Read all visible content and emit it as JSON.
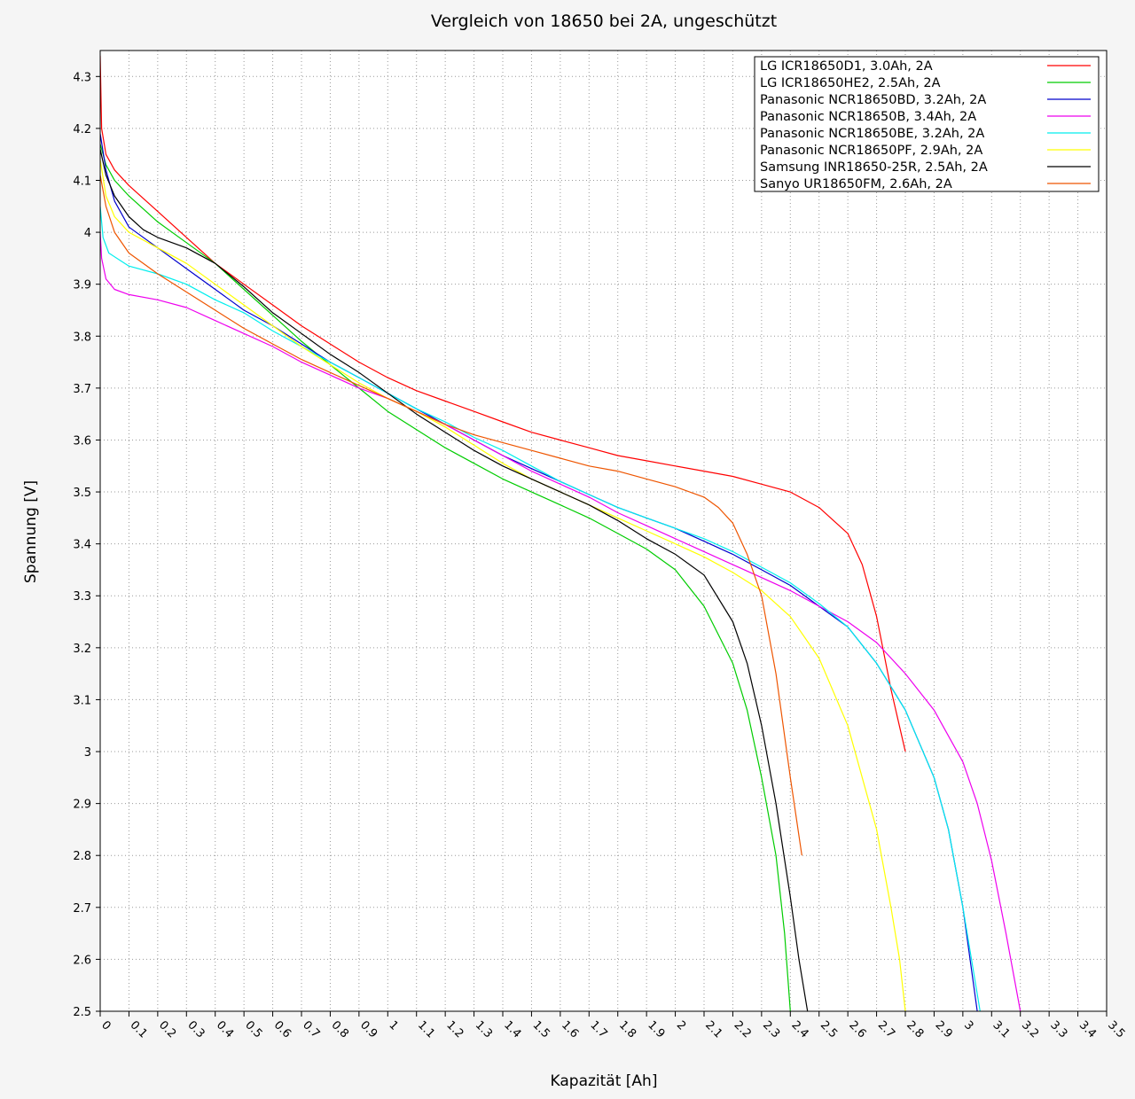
{
  "chart_data": {
    "type": "line",
    "title": "Vergleich von 18650 bei 2A, ungeschützt",
    "xlabel": "Kapazität [Ah]",
    "ylabel": "Spannung [V]",
    "xlim": [
      0,
      3.5
    ],
    "ylim": [
      2.5,
      4.35
    ],
    "x_ticks": [
      "0",
      "0.1",
      "0.2",
      "0.3",
      "0.4",
      "0.5",
      "0.6",
      "0.7",
      "0.8",
      "0.9",
      "1",
      "1.1",
      "1.2",
      "1.3",
      "1.4",
      "1.5",
      "1.6",
      "1.7",
      "1.8",
      "1.9",
      "2",
      "2.1",
      "2.2",
      "2.3",
      "2.4",
      "2.5",
      "2.6",
      "2.7",
      "2.8",
      "2.9",
      "3",
      "3.1",
      "3.2",
      "3.3",
      "3.4",
      "3.5"
    ],
    "y_ticks": [
      "2.5",
      "2.6",
      "2.7",
      "2.8",
      "2.9",
      "3",
      "3.1",
      "3.2",
      "3.3",
      "3.4",
      "3.5",
      "3.6",
      "3.7",
      "3.8",
      "3.9",
      "4",
      "4.1",
      "4.2",
      "4.3"
    ],
    "grid": true,
    "legend_position": "top-right",
    "series": [
      {
        "name": "LG ICR18650D1, 3.0Ah, 2A",
        "color": "#ff0000",
        "points": [
          [
            0,
            4.34
          ],
          [
            0.005,
            4.2
          ],
          [
            0.02,
            4.15
          ],
          [
            0.05,
            4.12
          ],
          [
            0.1,
            4.09
          ],
          [
            0.2,
            4.04
          ],
          [
            0.3,
            3.99
          ],
          [
            0.4,
            3.94
          ],
          [
            0.5,
            3.9
          ],
          [
            0.6,
            3.86
          ],
          [
            0.7,
            3.82
          ],
          [
            0.8,
            3.785
          ],
          [
            0.9,
            3.75
          ],
          [
            1.0,
            3.72
          ],
          [
            1.1,
            3.695
          ],
          [
            1.2,
            3.675
          ],
          [
            1.3,
            3.655
          ],
          [
            1.4,
            3.635
          ],
          [
            1.5,
            3.615
          ],
          [
            1.6,
            3.6
          ],
          [
            1.7,
            3.585
          ],
          [
            1.8,
            3.57
          ],
          [
            1.9,
            3.56
          ],
          [
            2.0,
            3.55
          ],
          [
            2.1,
            3.54
          ],
          [
            2.2,
            3.53
          ],
          [
            2.3,
            3.515
          ],
          [
            2.4,
            3.5
          ],
          [
            2.5,
            3.47
          ],
          [
            2.6,
            3.42
          ],
          [
            2.65,
            3.36
          ],
          [
            2.7,
            3.26
          ],
          [
            2.75,
            3.12
          ],
          [
            2.8,
            3.0
          ]
        ]
      },
      {
        "name": "LG ICR18650HE2, 2.5Ah, 2A",
        "color": "#00cc00",
        "points": [
          [
            0,
            4.17
          ],
          [
            0.02,
            4.13
          ],
          [
            0.05,
            4.1
          ],
          [
            0.1,
            4.07
          ],
          [
            0.2,
            4.02
          ],
          [
            0.3,
            3.98
          ],
          [
            0.4,
            3.94
          ],
          [
            0.5,
            3.89
          ],
          [
            0.6,
            3.84
          ],
          [
            0.7,
            3.79
          ],
          [
            0.8,
            3.745
          ],
          [
            0.9,
            3.7
          ],
          [
            1.0,
            3.655
          ],
          [
            1.1,
            3.62
          ],
          [
            1.2,
            3.585
          ],
          [
            1.3,
            3.555
          ],
          [
            1.4,
            3.525
          ],
          [
            1.5,
            3.5
          ],
          [
            1.6,
            3.475
          ],
          [
            1.7,
            3.45
          ],
          [
            1.8,
            3.42
          ],
          [
            1.9,
            3.39
          ],
          [
            2.0,
            3.35
          ],
          [
            2.1,
            3.28
          ],
          [
            2.2,
            3.17
          ],
          [
            2.25,
            3.08
          ],
          [
            2.3,
            2.95
          ],
          [
            2.35,
            2.8
          ],
          [
            2.38,
            2.65
          ],
          [
            2.4,
            2.5
          ]
        ]
      },
      {
        "name": "Panasonic NCR18650BD, 3.2Ah, 2A",
        "color": "#0000cc",
        "points": [
          [
            0,
            4.19
          ],
          [
            0.02,
            4.12
          ],
          [
            0.05,
            4.06
          ],
          [
            0.1,
            4.01
          ],
          [
            0.2,
            3.97
          ],
          [
            0.3,
            3.93
          ],
          [
            0.4,
            3.89
          ],
          [
            0.5,
            3.85
          ],
          [
            0.6,
            3.82
          ],
          [
            0.7,
            3.785
          ],
          [
            0.8,
            3.75
          ],
          [
            0.9,
            3.72
          ],
          [
            1.0,
            3.69
          ],
          [
            1.1,
            3.66
          ],
          [
            1.2,
            3.63
          ],
          [
            1.3,
            3.6
          ],
          [
            1.4,
            3.57
          ],
          [
            1.5,
            3.545
          ],
          [
            1.6,
            3.52
          ],
          [
            1.7,
            3.495
          ],
          [
            1.8,
            3.47
          ],
          [
            1.9,
            3.45
          ],
          [
            2.0,
            3.43
          ],
          [
            2.1,
            3.405
          ],
          [
            2.2,
            3.38
          ],
          [
            2.3,
            3.35
          ],
          [
            2.4,
            3.32
          ],
          [
            2.5,
            3.28
          ],
          [
            2.6,
            3.24
          ],
          [
            2.7,
            3.17
          ],
          [
            2.8,
            3.08
          ],
          [
            2.9,
            2.95
          ],
          [
            2.95,
            2.85
          ],
          [
            3.0,
            2.7
          ],
          [
            3.05,
            2.5
          ]
        ]
      },
      {
        "name": "Panasonic NCR18650B, 3.4Ah, 2A",
        "color": "#ee00ee",
        "points": [
          [
            0,
            4.0
          ],
          [
            0.005,
            3.95
          ],
          [
            0.02,
            3.91
          ],
          [
            0.05,
            3.89
          ],
          [
            0.1,
            3.88
          ],
          [
            0.2,
            3.87
          ],
          [
            0.3,
            3.855
          ],
          [
            0.4,
            3.83
          ],
          [
            0.5,
            3.805
          ],
          [
            0.6,
            3.78
          ],
          [
            0.7,
            3.75
          ],
          [
            0.8,
            3.725
          ],
          [
            0.9,
            3.7
          ],
          [
            1.0,
            3.68
          ],
          [
            1.1,
            3.655
          ],
          [
            1.2,
            3.63
          ],
          [
            1.3,
            3.6
          ],
          [
            1.4,
            3.57
          ],
          [
            1.5,
            3.54
          ],
          [
            1.6,
            3.515
          ],
          [
            1.7,
            3.49
          ],
          [
            1.8,
            3.46
          ],
          [
            1.9,
            3.435
          ],
          [
            2.0,
            3.41
          ],
          [
            2.1,
            3.385
          ],
          [
            2.2,
            3.36
          ],
          [
            2.3,
            3.335
          ],
          [
            2.4,
            3.31
          ],
          [
            2.5,
            3.28
          ],
          [
            2.6,
            3.25
          ],
          [
            2.7,
            3.21
          ],
          [
            2.8,
            3.15
          ],
          [
            2.9,
            3.08
          ],
          [
            3.0,
            2.98
          ],
          [
            3.05,
            2.9
          ],
          [
            3.1,
            2.79
          ],
          [
            3.15,
            2.65
          ],
          [
            3.2,
            2.5
          ]
        ]
      },
      {
        "name": "Panasonic NCR18650BE, 3.2Ah, 2A",
        "color": "#00eeee",
        "points": [
          [
            0,
            4.05
          ],
          [
            0.01,
            3.99
          ],
          [
            0.03,
            3.96
          ],
          [
            0.1,
            3.935
          ],
          [
            0.2,
            3.92
          ],
          [
            0.3,
            3.9
          ],
          [
            0.4,
            3.87
          ],
          [
            0.5,
            3.845
          ],
          [
            0.6,
            3.81
          ],
          [
            0.7,
            3.78
          ],
          [
            0.8,
            3.75
          ],
          [
            0.9,
            3.72
          ],
          [
            1.0,
            3.69
          ],
          [
            1.1,
            3.66
          ],
          [
            1.2,
            3.635
          ],
          [
            1.3,
            3.605
          ],
          [
            1.4,
            3.58
          ],
          [
            1.5,
            3.55
          ],
          [
            1.6,
            3.52
          ],
          [
            1.7,
            3.495
          ],
          [
            1.8,
            3.47
          ],
          [
            1.9,
            3.45
          ],
          [
            2.0,
            3.43
          ],
          [
            2.1,
            3.41
          ],
          [
            2.2,
            3.385
          ],
          [
            2.3,
            3.355
          ],
          [
            2.4,
            3.325
          ],
          [
            2.5,
            3.285
          ],
          [
            2.6,
            3.24
          ],
          [
            2.7,
            3.17
          ],
          [
            2.8,
            3.08
          ],
          [
            2.9,
            2.95
          ],
          [
            2.95,
            2.85
          ],
          [
            3.0,
            2.7
          ],
          [
            3.06,
            2.5
          ]
        ]
      },
      {
        "name": "Panasonic NCR18650PF, 2.9Ah, 2A",
        "color": "#ffff00",
        "points": [
          [
            0,
            4.14
          ],
          [
            0.02,
            4.07
          ],
          [
            0.05,
            4.03
          ],
          [
            0.1,
            4.0
          ],
          [
            0.2,
            3.97
          ],
          [
            0.3,
            3.94
          ],
          [
            0.4,
            3.9
          ],
          [
            0.5,
            3.86
          ],
          [
            0.6,
            3.82
          ],
          [
            0.7,
            3.78
          ],
          [
            0.8,
            3.745
          ],
          [
            0.9,
            3.71
          ],
          [
            1.0,
            3.68
          ],
          [
            1.1,
            3.655
          ],
          [
            1.2,
            3.625
          ],
          [
            1.3,
            3.59
          ],
          [
            1.4,
            3.555
          ],
          [
            1.5,
            3.525
          ],
          [
            1.6,
            3.5
          ],
          [
            1.7,
            3.475
          ],
          [
            1.8,
            3.45
          ],
          [
            1.9,
            3.425
          ],
          [
            2.0,
            3.4
          ],
          [
            2.1,
            3.375
          ],
          [
            2.2,
            3.345
          ],
          [
            2.3,
            3.31
          ],
          [
            2.4,
            3.26
          ],
          [
            2.5,
            3.18
          ],
          [
            2.6,
            3.05
          ],
          [
            2.7,
            2.85
          ],
          [
            2.75,
            2.7
          ],
          [
            2.78,
            2.6
          ],
          [
            2.8,
            2.5
          ]
        ]
      },
      {
        "name": "Samsung INR18650-25R, 2.5Ah, 2A",
        "color": "#000000",
        "points": [
          [
            0,
            4.16
          ],
          [
            0.02,
            4.11
          ],
          [
            0.05,
            4.07
          ],
          [
            0.1,
            4.03
          ],
          [
            0.15,
            4.005
          ],
          [
            0.2,
            3.99
          ],
          [
            0.3,
            3.97
          ],
          [
            0.4,
            3.94
          ],
          [
            0.5,
            3.895
          ],
          [
            0.6,
            3.845
          ],
          [
            0.7,
            3.805
          ],
          [
            0.8,
            3.765
          ],
          [
            0.9,
            3.73
          ],
          [
            1.0,
            3.69
          ],
          [
            1.1,
            3.65
          ],
          [
            1.2,
            3.615
          ],
          [
            1.3,
            3.58
          ],
          [
            1.4,
            3.55
          ],
          [
            1.5,
            3.525
          ],
          [
            1.6,
            3.5
          ],
          [
            1.7,
            3.475
          ],
          [
            1.8,
            3.445
          ],
          [
            1.9,
            3.41
          ],
          [
            2.0,
            3.38
          ],
          [
            2.1,
            3.34
          ],
          [
            2.2,
            3.25
          ],
          [
            2.25,
            3.17
          ],
          [
            2.3,
            3.05
          ],
          [
            2.35,
            2.9
          ],
          [
            2.4,
            2.72
          ],
          [
            2.43,
            2.6
          ],
          [
            2.46,
            2.5
          ]
        ]
      },
      {
        "name": "Sanyo UR18650FM, 2.6Ah, 2A",
        "color": "#ee5500",
        "points": [
          [
            0,
            4.11
          ],
          [
            0.02,
            4.05
          ],
          [
            0.05,
            4.0
          ],
          [
            0.1,
            3.96
          ],
          [
            0.2,
            3.92
          ],
          [
            0.3,
            3.885
          ],
          [
            0.4,
            3.85
          ],
          [
            0.5,
            3.815
          ],
          [
            0.6,
            3.785
          ],
          [
            0.7,
            3.755
          ],
          [
            0.8,
            3.73
          ],
          [
            0.9,
            3.705
          ],
          [
            1.0,
            3.68
          ],
          [
            1.1,
            3.655
          ],
          [
            1.2,
            3.63
          ],
          [
            1.3,
            3.61
          ],
          [
            1.4,
            3.595
          ],
          [
            1.5,
            3.58
          ],
          [
            1.6,
            3.565
          ],
          [
            1.7,
            3.55
          ],
          [
            1.8,
            3.54
          ],
          [
            1.9,
            3.525
          ],
          [
            2.0,
            3.51
          ],
          [
            2.1,
            3.49
          ],
          [
            2.15,
            3.47
          ],
          [
            2.2,
            3.44
          ],
          [
            2.25,
            3.38
          ],
          [
            2.3,
            3.3
          ],
          [
            2.35,
            3.15
          ],
          [
            2.4,
            2.95
          ],
          [
            2.44,
            2.8
          ]
        ]
      }
    ]
  }
}
